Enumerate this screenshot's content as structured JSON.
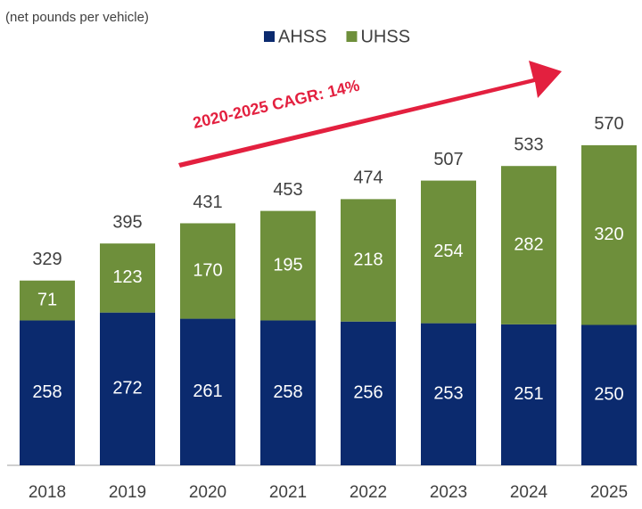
{
  "chart_data": {
    "type": "stacked_bar",
    "subtitle": "(net pounds per vehicle)",
    "annotation": "2020-2025 CAGR: 14%",
    "categories": [
      "2018",
      "2019",
      "2020",
      "2021",
      "2022",
      "2023",
      "2024",
      "2025"
    ],
    "series": [
      {
        "name": "AHSS",
        "color": "#0b2a6e",
        "values": [
          258,
          272,
          261,
          258,
          256,
          253,
          251,
          250
        ]
      },
      {
        "name": "UHSS",
        "color": "#6e8f3b",
        "values": [
          71,
          123,
          170,
          195,
          218,
          254,
          282,
          320
        ]
      }
    ],
    "totals": [
      329,
      395,
      431,
      453,
      474,
      507,
      533,
      570
    ],
    "ylim": [
      0,
      800
    ],
    "legend": "top"
  }
}
